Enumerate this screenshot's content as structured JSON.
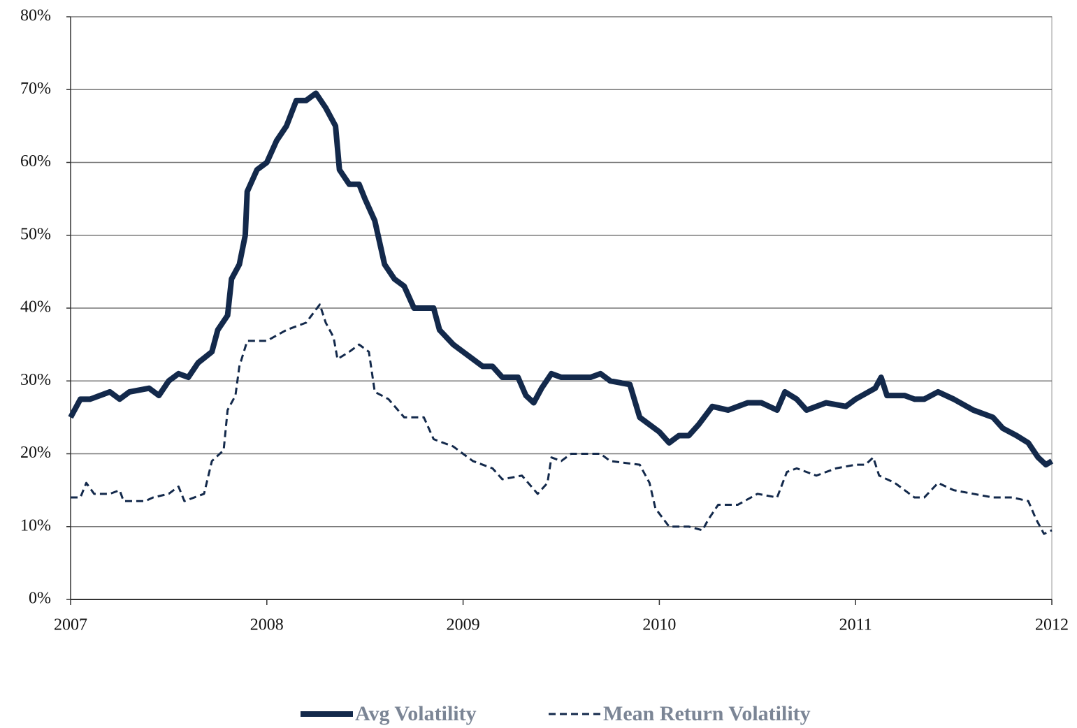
{
  "chart_data": {
    "type": "line",
    "xlim": [
      2007,
      2012
    ],
    "xticks": [
      2007,
      2008,
      2009,
      2010,
      2011,
      2012
    ],
    "ylim": [
      0,
      80
    ],
    "yticks": [
      {
        "value": 0,
        "label": "0%"
      },
      {
        "value": 10,
        "label": "10%"
      },
      {
        "value": 20,
        "label": "20%"
      },
      {
        "value": 30,
        "label": "30%"
      },
      {
        "value": 40,
        "label": "40%"
      },
      {
        "value": 50,
        "label": "50%"
      },
      {
        "value": 60,
        "label": "60%"
      },
      {
        "value": 70,
        "label": "70%"
      },
      {
        "value": 80,
        "label": "80%"
      }
    ],
    "grid": true,
    "legend": "bottom",
    "series": [
      {
        "name": "Avg Volatility",
        "color": "#13294b",
        "style": "solid",
        "x": [
          2007.0,
          2007.05,
          2007.1,
          2007.15,
          2007.2,
          2007.25,
          2007.3,
          2007.4,
          2007.45,
          2007.5,
          2007.55,
          2007.6,
          2007.65,
          2007.72,
          2007.75,
          2007.8,
          2007.82,
          2007.86,
          2007.89,
          2007.9,
          2007.95,
          2008.0,
          2008.05,
          2008.1,
          2008.15,
          2008.2,
          2008.25,
          2008.3,
          2008.35,
          2008.37,
          2008.42,
          2008.47,
          2008.5,
          2008.55,
          2008.6,
          2008.65,
          2008.7,
          2008.75,
          2008.85,
          2008.88,
          2008.95,
          2009.0,
          2009.1,
          2009.15,
          2009.2,
          2009.28,
          2009.32,
          2009.36,
          2009.4,
          2009.45,
          2009.5,
          2009.65,
          2009.7,
          2009.75,
          2009.85,
          2009.9,
          2010.0,
          2010.05,
          2010.1,
          2010.15,
          2010.2,
          2010.27,
          2010.35,
          2010.45,
          2010.52,
          2010.6,
          2010.64,
          2010.7,
          2010.75,
          2010.85,
          2010.95,
          2011.0,
          2011.1,
          2011.13,
          2011.16,
          2011.25,
          2011.3,
          2011.35,
          2011.42,
          2011.5,
          2011.6,
          2011.7,
          2011.75,
          2011.82,
          2011.88,
          2011.93,
          2011.97,
          2012.0
        ],
        "values": [
          25,
          27.5,
          27.5,
          28,
          28.5,
          27.5,
          28.5,
          29,
          28,
          30,
          31,
          30.5,
          32.5,
          34,
          37,
          39,
          44,
          46,
          50,
          56,
          59,
          60,
          63,
          65,
          68.5,
          68.5,
          69.5,
          67.5,
          65,
          59,
          57,
          57,
          55,
          52,
          46,
          44,
          43,
          40,
          40,
          37,
          35,
          34,
          32,
          32,
          30.5,
          30.5,
          28,
          27,
          29,
          31,
          30.5,
          30.5,
          31,
          30,
          29.5,
          25,
          23,
          21.5,
          22.5,
          22.5,
          24,
          26.5,
          26,
          27,
          27,
          26,
          28.5,
          27.5,
          26,
          27,
          26.5,
          27.5,
          29,
          30.5,
          28,
          28,
          27.5,
          27.5,
          28.5,
          27.5,
          26,
          25,
          23.5,
          22.5,
          21.5,
          19.5,
          18.5,
          19
        ]
      },
      {
        "name": "Mean Return Volatility",
        "color": "#13294b",
        "style": "dashed",
        "x": [
          2007.0,
          2007.05,
          2007.08,
          2007.12,
          2007.2,
          2007.25,
          2007.27,
          2007.38,
          2007.42,
          2007.5,
          2007.55,
          2007.58,
          2007.68,
          2007.72,
          2007.78,
          2007.8,
          2007.84,
          2007.86,
          2007.9,
          2008.0,
          2008.1,
          2008.2,
          2008.27,
          2008.3,
          2008.34,
          2008.36,
          2008.42,
          2008.47,
          2008.52,
          2008.55,
          2008.62,
          2008.7,
          2008.8,
          2008.85,
          2008.95,
          2009.0,
          2009.05,
          2009.15,
          2009.2,
          2009.3,
          2009.38,
          2009.43,
          2009.45,
          2009.5,
          2009.55,
          2009.7,
          2009.75,
          2009.9,
          2009.95,
          2009.98,
          2010.05,
          2010.15,
          2010.22,
          2010.25,
          2010.3,
          2010.4,
          2010.5,
          2010.6,
          2010.65,
          2010.7,
          2010.8,
          2010.9,
          2011.0,
          2011.05,
          2011.09,
          2011.12,
          2011.2,
          2011.3,
          2011.35,
          2011.42,
          2011.5,
          2011.6,
          2011.7,
          2011.8,
          2011.88,
          2011.92,
          2011.96,
          2012.0
        ],
        "values": [
          14,
          14,
          16,
          14.5,
          14.5,
          15,
          13.5,
          13.5,
          14,
          14.5,
          15.5,
          13.5,
          14.5,
          19,
          20.5,
          26,
          28,
          32,
          35.5,
          35.5,
          37,
          38,
          40.5,
          38,
          36,
          33,
          34,
          35,
          34,
          28.5,
          27.5,
          25,
          25,
          22,
          21,
          20,
          19,
          18,
          16.5,
          17,
          14.5,
          16,
          19.5,
          19,
          20,
          20,
          19,
          18.5,
          16,
          12.5,
          10,
          10,
          9.5,
          11,
          13,
          13,
          14.5,
          14,
          17.5,
          18,
          17,
          18,
          18.5,
          18.5,
          19.5,
          17,
          16,
          14,
          14,
          16,
          15,
          14.5,
          14,
          14,
          13.5,
          11,
          9,
          9.5
        ]
      }
    ]
  }
}
